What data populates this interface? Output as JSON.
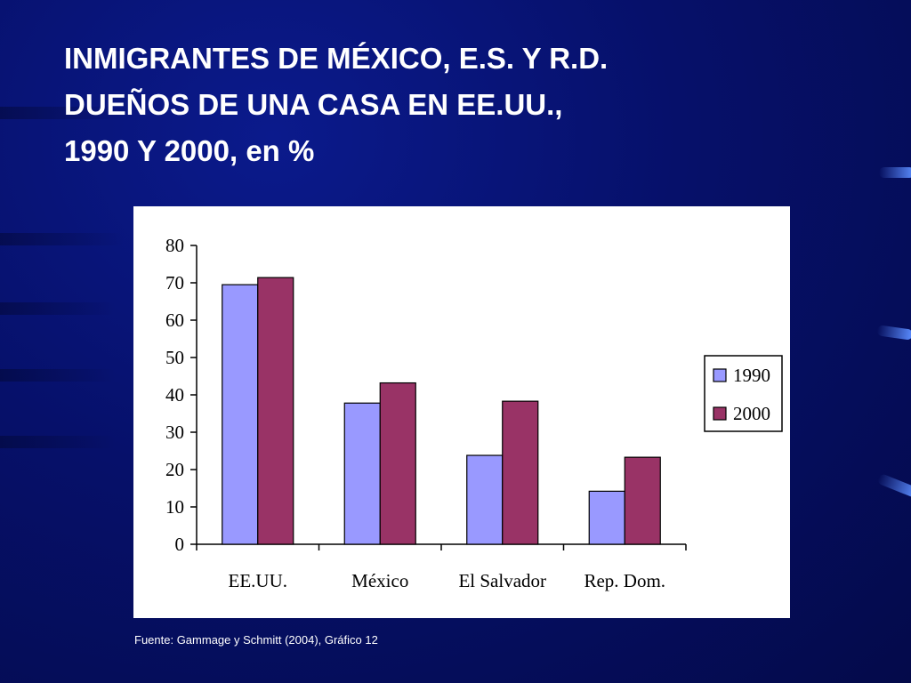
{
  "slide": {
    "title": "INMIGRANTES DE MÉXICO, E.S. Y R.D.\nDUEÑOS DE UNA CASA  EN EE.UU.,\n1990 Y 2000, en %",
    "source": "Fuente: Gammage y Schmitt (2004), Gráfico 12"
  },
  "colors": {
    "background": "#06106a",
    "title_text": "#ffffff",
    "series_1990": "#9999ff",
    "series_2000": "#993366"
  },
  "chart_data": {
    "type": "bar",
    "title": "",
    "xlabel": "",
    "ylabel": "",
    "categories": [
      "EE.UU.",
      "México",
      "El Salvador",
      "Rep. Dom."
    ],
    "series": [
      {
        "name": "1990",
        "values": [
          69.5,
          37.8,
          23.8,
          14.2
        ],
        "color": "#9999ff"
      },
      {
        "name": "2000",
        "values": [
          71.4,
          43.2,
          38.3,
          23.3
        ],
        "color": "#993366"
      }
    ],
    "ylim": [
      0,
      80
    ],
    "yticks": [
      0,
      10,
      20,
      30,
      40,
      50,
      60,
      70,
      80
    ],
    "grid": false,
    "legend": "right"
  }
}
